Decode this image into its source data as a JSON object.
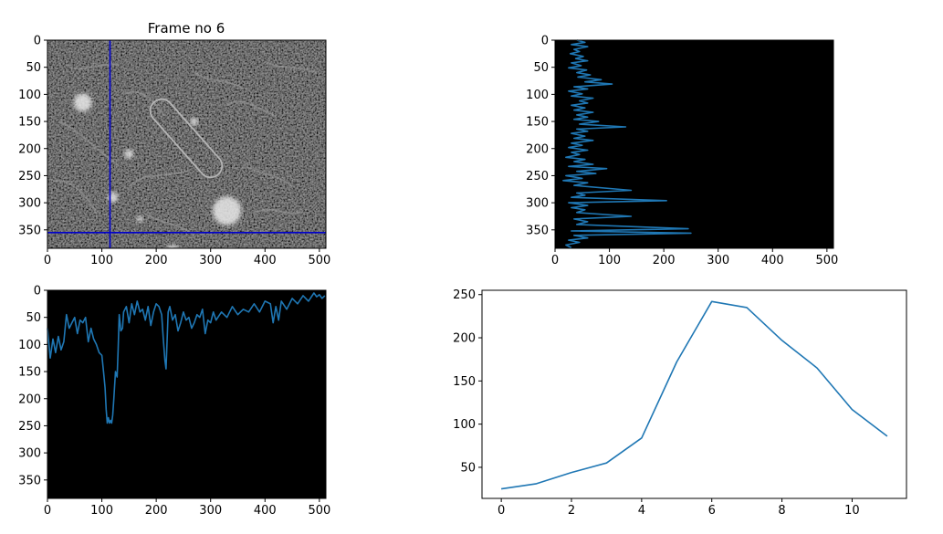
{
  "figure": {
    "background": "#ffffff",
    "line_color": "#1f77b4",
    "crosshair_color": "#0000cc"
  },
  "chart_data": [
    {
      "type": "image",
      "title": "Frame no 6",
      "xlim": [
        0,
        512
      ],
      "ylim": [
        384,
        0
      ],
      "xticks": [
        0,
        100,
        200,
        300,
        400,
        500
      ],
      "yticks": [
        0,
        50,
        100,
        150,
        200,
        250,
        300,
        350
      ],
      "xtick_labels": [
        "0",
        "100",
        "200",
        "300",
        "400",
        "500"
      ],
      "ytick_labels": [
        "0",
        "50",
        "100",
        "150",
        "200",
        "250",
        "300",
        "350"
      ],
      "crosshair": {
        "x": 115,
        "y": 355
      },
      "features": {
        "bright_spots": [
          [
            65,
            115,
            14
          ],
          [
            330,
            315,
            22
          ],
          [
            230,
            390,
            10
          ],
          [
            120,
            290,
            8
          ],
          [
            150,
            210,
            7
          ],
          [
            270,
            150,
            6
          ],
          [
            170,
            330,
            5
          ]
        ],
        "capsule": {
          "x1": 210,
          "y1": 130,
          "x2": 300,
          "y2": 232,
          "r": 21
        },
        "filaments": [
          [
            [
              20,
              150
            ],
            [
              60,
              165
            ],
            [
              90,
              205
            ],
            [
              130,
              230
            ]
          ],
          [
            [
              140,
              100
            ],
            [
              170,
              85
            ],
            [
              195,
              110
            ],
            [
              215,
              140
            ]
          ],
          [
            [
              10,
              260
            ],
            [
              40,
              255
            ],
            [
              70,
              280
            ],
            [
              90,
              320
            ]
          ],
          [
            [
              150,
              270
            ],
            [
              180,
              240
            ],
            [
              220,
              255
            ],
            [
              260,
              240
            ]
          ],
          [
            [
              330,
              120
            ],
            [
              360,
              100
            ],
            [
              390,
              130
            ],
            [
              420,
              140
            ]
          ],
          [
            [
              360,
              230
            ],
            [
              390,
              250
            ],
            [
              420,
              245
            ],
            [
              450,
              270
            ]
          ],
          [
            [
              40,
              50
            ],
            [
              70,
              60
            ],
            [
              100,
              40
            ],
            [
              130,
              45
            ]
          ],
          [
            [
              270,
              60
            ],
            [
              300,
              80
            ],
            [
              330,
              70
            ],
            [
              360,
              90
            ]
          ],
          [
            [
              400,
              40
            ],
            [
              430,
              55
            ],
            [
              460,
              45
            ],
            [
              495,
              60
            ]
          ],
          [
            [
              180,
              320
            ],
            [
              210,
              340
            ],
            [
              240,
              335
            ],
            [
              270,
              360
            ]
          ],
          [
            [
              380,
              320
            ],
            [
              410,
              300
            ],
            [
              440,
              330
            ],
            [
              470,
              315
            ]
          ]
        ]
      }
    },
    {
      "type": "line",
      "orientation": "vertical_profile",
      "xlim": [
        0,
        512
      ],
      "ylim": [
        384,
        0
      ],
      "xticks": [
        0,
        100,
        200,
        300,
        400,
        500
      ],
      "yticks": [
        0,
        50,
        100,
        150,
        200,
        250,
        300,
        350
      ],
      "xtick_labels": [
        "0",
        "100",
        "200",
        "300",
        "400",
        "500"
      ],
      "ytick_labels": [
        "0",
        "50",
        "100",
        "150",
        "200",
        "250",
        "300",
        "350"
      ],
      "background": "#000000",
      "series": [
        {
          "x": [
            40,
            55,
            30,
            60,
            35,
            45,
            28,
            52,
            38,
            60,
            30,
            48,
            25,
            58,
            40,
            65,
            42,
            85,
            55,
            105,
            35,
            60,
            25,
            50,
            30,
            70,
            45,
            60,
            30,
            55,
            35,
            70,
            40,
            60,
            35,
            80,
            45,
            130,
            40,
            60,
            30,
            55,
            35,
            70,
            30,
            50,
            25,
            60,
            30,
            45,
            20,
            55,
            35,
            70,
            25,
            95,
            40,
            75,
            20,
            50,
            15,
            60,
            35,
            140,
            40,
            55,
            30,
            205,
            25,
            60,
            30,
            55,
            40,
            140,
            35,
            60,
            40,
            245,
            30,
            250,
            35,
            60,
            25,
            45,
            20,
            30
          ],
          "y": [
            0,
            4,
            8,
            12,
            17,
            21,
            25,
            30,
            34,
            38,
            42,
            47,
            51,
            55,
            60,
            64,
            68,
            73,
            77,
            81,
            86,
            90,
            94,
            99,
            103,
            107,
            112,
            116,
            120,
            125,
            129,
            133,
            138,
            142,
            146,
            150,
            155,
            160,
            164,
            168,
            172,
            177,
            181,
            185,
            190,
            194,
            198,
            203,
            207,
            211,
            216,
            220,
            224,
            229,
            233,
            237,
            242,
            246,
            250,
            255,
            259,
            263,
            268,
            277,
            282,
            286,
            290,
            296,
            300,
            305,
            309,
            313,
            318,
            325,
            330,
            335,
            340,
            348,
            352,
            356,
            360,
            365,
            369,
            373,
            378,
            383
          ]
        }
      ]
    },
    {
      "type": "line",
      "orientation": "horizontal_profile",
      "xlim": [
        0,
        512
      ],
      "ylim": [
        384,
        0
      ],
      "xticks": [
        0,
        100,
        200,
        300,
        400,
        500
      ],
      "yticks": [
        0,
        50,
        100,
        150,
        200,
        250,
        300,
        350
      ],
      "xtick_labels": [
        "0",
        "100",
        "200",
        "300",
        "400",
        "500"
      ],
      "ytick_labels": [
        "0",
        "50",
        "100",
        "150",
        "200",
        "250",
        "300",
        "350"
      ],
      "background": "#000000",
      "series": [
        {
          "x": [
            0,
            5,
            10,
            15,
            20,
            25,
            30,
            35,
            40,
            45,
            50,
            55,
            60,
            65,
            70,
            75,
            80,
            85,
            90,
            95,
            100,
            103,
            106,
            108,
            110,
            112,
            114,
            116,
            118,
            120,
            122,
            125,
            128,
            130,
            132,
            135,
            138,
            140,
            145,
            150,
            155,
            160,
            165,
            170,
            175,
            180,
            185,
            190,
            195,
            200,
            205,
            210,
            213,
            216,
            218,
            222,
            225,
            230,
            235,
            240,
            245,
            250,
            255,
            260,
            265,
            270,
            275,
            280,
            285,
            290,
            295,
            300,
            305,
            310,
            320,
            330,
            340,
            350,
            360,
            370,
            380,
            390,
            400,
            410,
            415,
            420,
            425,
            430,
            440,
            450,
            460,
            470,
            480,
            490,
            495,
            500,
            505,
            510
          ],
          "y": [
            70,
            125,
            90,
            115,
            85,
            110,
            95,
            45,
            70,
            60,
            50,
            80,
            55,
            60,
            50,
            95,
            70,
            90,
            100,
            115,
            120,
            150,
            180,
            220,
            245,
            235,
            245,
            240,
            245,
            230,
            200,
            150,
            160,
            110,
            45,
            75,
            70,
            40,
            30,
            60,
            25,
            45,
            20,
            40,
            35,
            55,
            30,
            65,
            40,
            25,
            30,
            45,
            90,
            130,
            145,
            40,
            30,
            55,
            45,
            75,
            60,
            40,
            55,
            50,
            70,
            60,
            45,
            50,
            35,
            80,
            55,
            60,
            40,
            55,
            40,
            50,
            30,
            45,
            35,
            40,
            25,
            40,
            20,
            25,
            60,
            30,
            55,
            20,
            35,
            15,
            25,
            10,
            20,
            5,
            12,
            8,
            15,
            10
          ]
        }
      ]
    },
    {
      "type": "line",
      "xlim": [
        -0.55,
        11.55
      ],
      "ylim": [
        14,
        255
      ],
      "xticks": [
        0,
        2,
        4,
        6,
        8,
        10
      ],
      "yticks": [
        50,
        100,
        150,
        200,
        250
      ],
      "xtick_labels": [
        "0",
        "2",
        "4",
        "6",
        "8",
        "10"
      ],
      "ytick_labels": [
        "50",
        "100",
        "150",
        "200",
        "250"
      ],
      "background": "#ffffff",
      "series": [
        {
          "x": [
            0,
            1,
            2,
            3,
            4,
            5,
            6,
            7,
            8,
            9,
            10,
            11
          ],
          "y": [
            25,
            31,
            44,
            55,
            84,
            172,
            242,
            235,
            197,
            165,
            117,
            86
          ]
        }
      ]
    }
  ]
}
